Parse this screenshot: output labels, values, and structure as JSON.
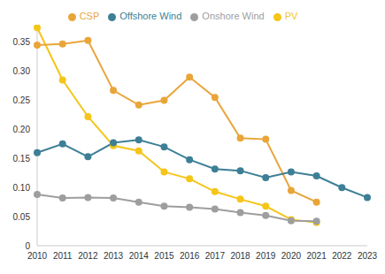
{
  "chart_data": {
    "type": "line",
    "categories": [
      "2010",
      "2011",
      "2012",
      "2013",
      "2014",
      "2015",
      "2016",
      "2017",
      "2018",
      "2019",
      "2020",
      "2021",
      "2022",
      "2023"
    ],
    "series": [
      {
        "name": "PV",
        "color": "#f5c518",
        "marker": "circle",
        "values": [
          0.375,
          0.285,
          0.222,
          0.172,
          0.163,
          0.127,
          0.115,
          0.093,
          0.08,
          0.068,
          0.045,
          0.04,
          null,
          null
        ]
      },
      {
        "name": "CSP",
        "color": "#e9a53a",
        "marker": "circle",
        "values": [
          0.345,
          0.347,
          0.353,
          0.267,
          0.242,
          0.25,
          0.29,
          0.255,
          0.185,
          0.183,
          0.095,
          0.075,
          null,
          null
        ]
      },
      {
        "name": "Onshore Wind",
        "color": "#9e9e9e",
        "marker": "circle",
        "values": [
          0.088,
          0.082,
          0.083,
          0.082,
          0.075,
          0.068,
          0.066,
          0.063,
          0.057,
          0.052,
          0.043,
          0.042,
          null,
          null
        ]
      },
      {
        "name": "Offshore Wind",
        "color": "#3d7f96",
        "marker": "circle",
        "values": [
          0.16,
          0.175,
          0.153,
          0.177,
          0.182,
          0.17,
          0.148,
          0.132,
          0.129,
          0.117,
          0.127,
          0.12,
          0.1,
          0.083
        ]
      }
    ],
    "ylim": [
      0,
      0.38
    ],
    "yticks": [
      0,
      0.05,
      {
        "value": 0.1,
        "label": "0.10"
      },
      0.15,
      {
        "value": 0.2,
        "label": "0.20"
      },
      0.25,
      {
        "value": 0.3,
        "label": "0.30"
      },
      0.35
    ],
    "grid": false,
    "legend": "top"
  }
}
